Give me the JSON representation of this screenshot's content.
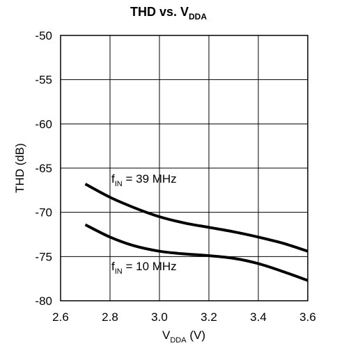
{
  "chart_data": {
    "type": "line",
    "title": {
      "main": "THD vs. V",
      "sub": "DDA"
    },
    "xlabel": {
      "main": "V",
      "sub": "DDA",
      "tail": " (V)"
    },
    "ylabel": "THD (dB)",
    "xlim": [
      2.6,
      3.6
    ],
    "ylim": [
      -80,
      -50
    ],
    "xticks": [
      "2.6",
      "2.8",
      "3.0",
      "3.2",
      "3.4",
      "3.6"
    ],
    "yticks": [
      "-50",
      "-55",
      "-60",
      "-65",
      "-70",
      "-75",
      "-80"
    ],
    "grid": true,
    "series": [
      {
        "name": {
          "main": "f",
          "sub": "IN",
          "tail": " = 39 MHz"
        },
        "x": [
          2.7,
          2.8,
          2.9,
          3.0,
          3.1,
          3.2,
          3.3,
          3.4,
          3.5,
          3.6
        ],
        "y": [
          -66.8,
          -68.3,
          -69.5,
          -70.5,
          -71.2,
          -71.7,
          -72.2,
          -72.8,
          -73.5,
          -74.4
        ]
      },
      {
        "name": {
          "main": "f",
          "sub": "IN",
          "tail": " = 10 MHz"
        },
        "x": [
          2.7,
          2.8,
          2.9,
          3.0,
          3.1,
          3.2,
          3.3,
          3.4,
          3.5,
          3.6
        ],
        "y": [
          -71.4,
          -72.8,
          -73.8,
          -74.4,
          -74.7,
          -74.9,
          -75.2,
          -75.8,
          -76.7,
          -77.7
        ]
      }
    ]
  }
}
